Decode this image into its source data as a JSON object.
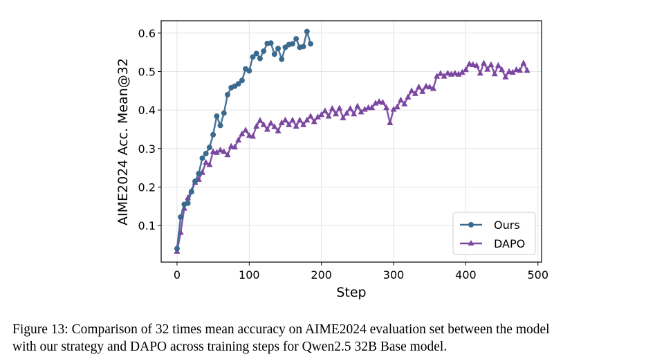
{
  "chart_data": {
    "type": "line",
    "xlabel": "Step",
    "ylabel": "AIME2024 Acc. Mean@32",
    "xlim": [
      -22,
      505
    ],
    "ylim": [
      0.005,
      0.632
    ],
    "xticks": [
      0,
      100,
      200,
      300,
      400,
      500
    ],
    "yticks": [
      0.1,
      0.2,
      0.3,
      0.4,
      0.5,
      0.6
    ],
    "grid": true,
    "legend_position": "lower-right",
    "series": [
      {
        "name": "Ours",
        "color": "#3b6a8f",
        "marker": "circle",
        "x": [
          0,
          5,
          10,
          15,
          20,
          25,
          30,
          35,
          40,
          45,
          50,
          55,
          60,
          65,
          70,
          75,
          80,
          85,
          90,
          95,
          100,
          105,
          110,
          115,
          120,
          125,
          130,
          135,
          140,
          145,
          150,
          155,
          160,
          165,
          170,
          175,
          180,
          185
        ],
        "y": [
          0.04,
          0.122,
          0.155,
          0.158,
          0.188,
          0.215,
          0.235,
          0.275,
          0.287,
          0.303,
          0.336,
          0.384,
          0.36,
          0.392,
          0.44,
          0.458,
          0.462,
          0.468,
          0.477,
          0.507,
          0.502,
          0.538,
          0.547,
          0.534,
          0.553,
          0.573,
          0.574,
          0.545,
          0.56,
          0.532,
          0.563,
          0.57,
          0.572,
          0.585,
          0.563,
          0.565,
          0.604,
          0.572
        ]
      },
      {
        "name": "DAPO",
        "color": "#7b47a0",
        "marker": "triangle",
        "x": [
          0,
          5,
          10,
          15,
          20,
          25,
          30,
          35,
          40,
          45,
          50,
          55,
          60,
          65,
          70,
          75,
          80,
          85,
          90,
          95,
          100,
          105,
          110,
          115,
          120,
          125,
          130,
          135,
          140,
          145,
          150,
          155,
          160,
          165,
          170,
          175,
          180,
          185,
          190,
          195,
          200,
          205,
          210,
          215,
          220,
          225,
          230,
          235,
          240,
          245,
          250,
          255,
          260,
          265,
          270,
          275,
          280,
          285,
          290,
          295,
          300,
          305,
          310,
          315,
          320,
          325,
          330,
          335,
          340,
          345,
          350,
          355,
          360,
          365,
          370,
          375,
          380,
          385,
          390,
          395,
          400,
          405,
          410,
          415,
          420,
          425,
          430,
          435,
          440,
          445,
          450,
          455,
          460,
          465,
          470,
          475,
          480,
          485
        ],
        "y": [
          0.033,
          0.082,
          0.145,
          0.172,
          0.19,
          0.212,
          0.22,
          0.238,
          0.264,
          0.258,
          0.292,
          0.29,
          0.296,
          0.292,
          0.284,
          0.306,
          0.304,
          0.322,
          0.338,
          0.348,
          0.334,
          0.332,
          0.358,
          0.373,
          0.362,
          0.35,
          0.366,
          0.357,
          0.346,
          0.367,
          0.374,
          0.362,
          0.374,
          0.358,
          0.374,
          0.362,
          0.374,
          0.384,
          0.37,
          0.382,
          0.388,
          0.398,
          0.384,
          0.404,
          0.39,
          0.405,
          0.38,
          0.392,
          0.404,
          0.39,
          0.41,
          0.395,
          0.402,
          0.406,
          0.406,
          0.418,
          0.422,
          0.42,
          0.406,
          0.367,
          0.402,
          0.408,
          0.426,
          0.416,
          0.434,
          0.45,
          0.443,
          0.46,
          0.448,
          0.462,
          0.46,
          0.456,
          0.488,
          0.495,
          0.488,
          0.496,
          0.493,
          0.496,
          0.493,
          0.498,
          0.505,
          0.52,
          0.518,
          0.516,
          0.496,
          0.522,
          0.506,
          0.518,
          0.494,
          0.516,
          0.505,
          0.486,
          0.5,
          0.498,
          0.505,
          0.503,
          0.522,
          0.503
        ]
      }
    ]
  },
  "caption": {
    "line1": "Figure 13: Comparison of 32 times mean accuracy on AIME2024 evaluation set between the model",
    "line2": "with our strategy and DAPO across training steps for Qwen2.5 32B Base model."
  }
}
